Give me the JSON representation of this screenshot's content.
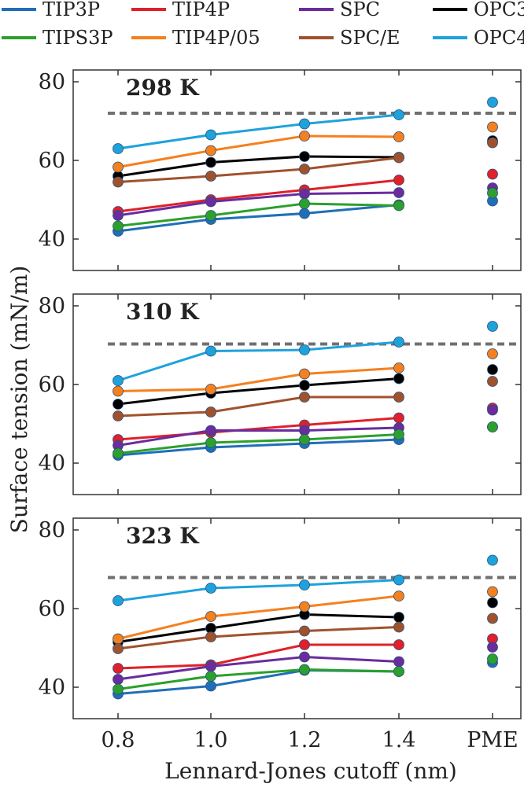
{
  "chart_data": {
    "type": "line",
    "xlabel": "Lennard-Jones cutoff (nm)",
    "ylabel": "Surface tension (mN/m)",
    "x_ticks": [
      "0.8",
      "1.0",
      "1.2",
      "1.4",
      "PME"
    ],
    "x": [
      0.8,
      1.0,
      1.2,
      1.4
    ],
    "ylim": [
      32,
      83
    ],
    "y_ticks": [
      40,
      60,
      80
    ],
    "legend": {
      "placement": "top",
      "columns": 4
    },
    "series_meta": [
      {
        "name": "TIP3P",
        "color": "#1f6fb8"
      },
      {
        "name": "TIP4P",
        "color": "#e0202a"
      },
      {
        "name": "SPC",
        "color": "#6a2c9e"
      },
      {
        "name": "OPC3",
        "color": "#000000"
      },
      {
        "name": "TIPS3P",
        "color": "#2ca02c"
      },
      {
        "name": "TIP4P/05",
        "color": "#f5801e"
      },
      {
        "name": "SPC/E",
        "color": "#a0522d"
      },
      {
        "name": "OPC4",
        "color": "#1ea2dc"
      }
    ],
    "panels": [
      {
        "title": "298 K",
        "reference_line": 72,
        "series": [
          {
            "name": "TIP3P",
            "values": [
              42.0,
              45.0,
              46.5,
              48.7
            ],
            "pme": 49.7
          },
          {
            "name": "TIP4P",
            "values": [
              47.0,
              50.0,
              52.5,
              55.0
            ],
            "pme": 56.5
          },
          {
            "name": "SPC",
            "values": [
              46.0,
              49.5,
              51.5,
              51.8
            ],
            "pme": 53.0
          },
          {
            "name": "OPC3",
            "values": [
              56.0,
              59.5,
              61.0,
              60.8
            ],
            "pme": 65.0
          },
          {
            "name": "TIPS3P",
            "values": [
              43.3,
              46.0,
              49.0,
              48.5
            ],
            "pme": 51.7
          },
          {
            "name": "TIP4P/05",
            "values": [
              58.3,
              62.5,
              66.2,
              66.0
            ],
            "pme": 68.5
          },
          {
            "name": "SPC/E",
            "values": [
              54.5,
              56.0,
              57.8,
              60.7
            ],
            "pme": 64.5
          },
          {
            "name": "OPC4",
            "values": [
              63.0,
              66.5,
              69.3,
              71.6
            ],
            "pme": 74.8
          }
        ]
      },
      {
        "title": "310 K",
        "reference_line": 70.3,
        "series": [
          {
            "name": "TIP3P",
            "values": [
              42.0,
              44.0,
              45.0,
              46.0
            ],
            "pme": 49.2
          },
          {
            "name": "TIP4P",
            "values": [
              46.0,
              47.8,
              49.7,
              51.5
            ],
            "pme": 54.0
          },
          {
            "name": "SPC",
            "values": [
              44.5,
              48.3,
              48.3,
              49.0
            ],
            "pme": 53.5
          },
          {
            "name": "OPC3",
            "values": [
              55.0,
              57.8,
              59.8,
              61.5
            ],
            "pme": 63.8
          },
          {
            "name": "TIPS3P",
            "values": [
              42.5,
              45.2,
              46.0,
              47.3
            ],
            "pme": 49.2
          },
          {
            "name": "TIP4P/05",
            "values": [
              58.3,
              58.8,
              62.7,
              64.2
            ],
            "pme": 67.8
          },
          {
            "name": "SPC/E",
            "values": [
              52.0,
              53.0,
              56.8,
              56.8
            ],
            "pme": 60.8
          },
          {
            "name": "OPC4",
            "values": [
              61.0,
              68.5,
              68.8,
              70.8
            ],
            "pme": 74.8
          }
        ]
      },
      {
        "title": "323 K",
        "reference_line": 67.9,
        "series": [
          {
            "name": "TIP3P",
            "values": [
              38.3,
              40.3,
              44.3,
              44.0
            ],
            "pme": 46.3
          },
          {
            "name": "TIP4P",
            "values": [
              44.8,
              45.7,
              50.8,
              50.8
            ],
            "pme": 52.3
          },
          {
            "name": "SPC",
            "values": [
              42.0,
              45.3,
              47.7,
              46.5
            ],
            "pme": 50.2
          },
          {
            "name": "OPC3",
            "values": [
              51.5,
              55.0,
              58.5,
              57.8
            ],
            "pme": 61.5
          },
          {
            "name": "TIPS3P",
            "values": [
              39.5,
              42.8,
              44.5,
              44.0
            ],
            "pme": 47.2
          },
          {
            "name": "TIP4P/05",
            "values": [
              52.3,
              58.0,
              60.5,
              63.2
            ],
            "pme": 64.3
          },
          {
            "name": "SPC/E",
            "values": [
              49.8,
              52.8,
              54.3,
              55.3
            ],
            "pme": 57.5
          },
          {
            "name": "OPC4",
            "values": [
              62.0,
              65.2,
              66.0,
              67.3
            ],
            "pme": 72.3
          }
        ]
      }
    ]
  }
}
